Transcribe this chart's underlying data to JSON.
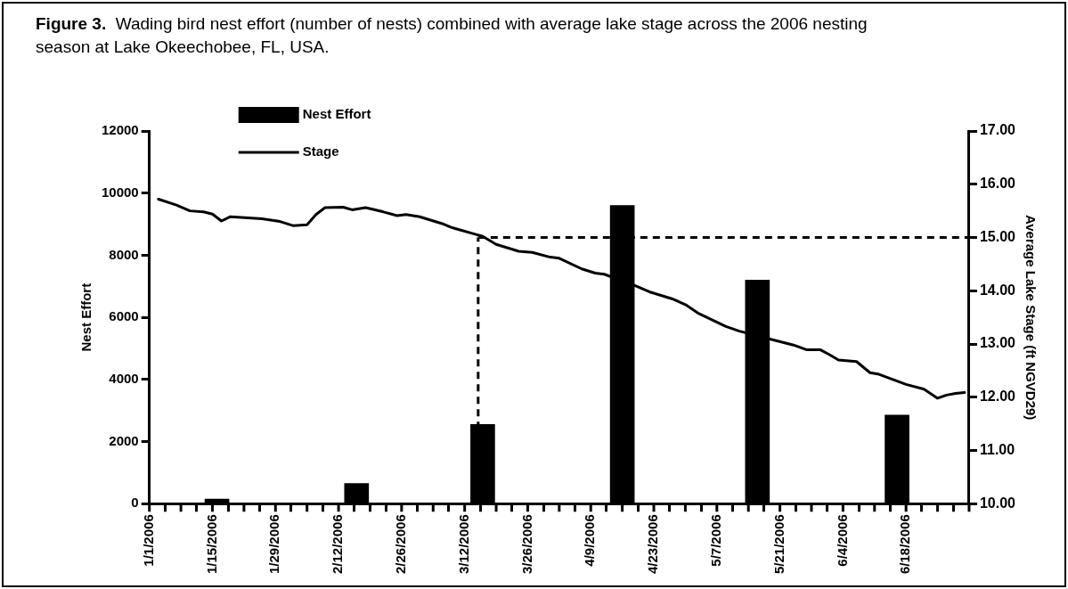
{
  "chart_data": {
    "type": "bar",
    "title": "Figure 3.",
    "subtitle": "Wading bird nest effort (number of nests) combined with average lake stage across the 2006 nesting season at Lake Okeechobee, FL, USA.",
    "ylabel": "Nest Effort",
    "y2label": "Average Lake Stage (ft NGVD29)",
    "series": [
      {
        "name": "Nest Effort",
        "color": "#000000",
        "x": [
          "2006-01-16",
          "2006-02-16",
          "2006-03-16",
          "2006-04-16",
          "2006-05-16",
          "2006-06-16"
        ],
        "values": [
          150,
          650,
          2550,
          9600,
          7200,
          2850
        ]
      },
      {
        "name": "Stage",
        "type": "line",
        "axis": "y2",
        "color": "#000000",
        "x": [
          "2006-01-03",
          "2006-01-07",
          "2006-01-10",
          "2006-01-13",
          "2006-01-15",
          "2006-01-17",
          "2006-01-19",
          "2006-01-26",
          "2006-01-30",
          "2006-02-02",
          "2006-02-05",
          "2006-02-07",
          "2006-02-09",
          "2006-02-13",
          "2006-02-15",
          "2006-02-18",
          "2006-02-22",
          "2006-02-25",
          "2006-02-27",
          "2006-03-02",
          "2006-03-07",
          "2006-03-09",
          "2006-03-14",
          "2006-03-16",
          "2006-03-19",
          "2006-03-24",
          "2006-03-27",
          "2006-03-31",
          "2006-04-02",
          "2006-04-07",
          "2006-04-10",
          "2006-04-12",
          "2006-04-19",
          "2006-04-22",
          "2006-04-27",
          "2006-04-30",
          "2006-05-03",
          "2006-05-09",
          "2006-05-12",
          "2006-05-18",
          "2006-05-24",
          "2006-05-27",
          "2006-05-30",
          "2006-06-01",
          "2006-06-03",
          "2006-06-07",
          "2006-06-10",
          "2006-06-12",
          "2006-06-18",
          "2006-06-22",
          "2006-06-25",
          "2006-06-27",
          "2006-06-29",
          "2006-07-01"
        ],
        "values": [
          15.72,
          15.61,
          15.5,
          15.48,
          15.44,
          15.31,
          15.39,
          15.35,
          15.3,
          15.22,
          15.24,
          15.43,
          15.56,
          15.57,
          15.52,
          15.56,
          15.48,
          15.41,
          15.43,
          15.39,
          15.26,
          15.19,
          15.07,
          15.02,
          14.87,
          14.74,
          14.72,
          14.63,
          14.61,
          14.41,
          14.33,
          14.31,
          14.09,
          13.98,
          13.85,
          13.74,
          13.57,
          13.33,
          13.24,
          13.11,
          12.98,
          12.89,
          12.89,
          12.8,
          12.7,
          12.67,
          12.46,
          12.43,
          12.24,
          12.15,
          11.98,
          12.04,
          12.07,
          12.09
        ]
      }
    ],
    "xlim": [
      "2006-01-01",
      "2006-07-02"
    ],
    "xticks": [
      {
        "value": "2006-01-01",
        "label": "1/1/2006"
      },
      {
        "value": "2006-01-08",
        "label": null
      },
      {
        "value": "2006-01-15",
        "label": "1/15/2006"
      },
      {
        "value": "2006-01-22",
        "label": null
      },
      {
        "value": "2006-01-29",
        "label": "1/29/2006"
      },
      {
        "value": "2006-02-05",
        "label": null
      },
      {
        "value": "2006-02-12",
        "label": "2/12/2006"
      },
      {
        "value": "2006-02-19",
        "label": null
      },
      {
        "value": "2006-02-26",
        "label": "2/26/2006"
      },
      {
        "value": "2006-03-05",
        "label": null
      },
      {
        "value": "2006-03-12",
        "label": "3/12/2006"
      },
      {
        "value": "2006-03-19",
        "label": null
      },
      {
        "value": "2006-03-26",
        "label": "3/26/2006"
      },
      {
        "value": "2006-04-02",
        "label": null
      },
      {
        "value": "2006-04-09",
        "label": "4/9/2006"
      },
      {
        "value": "2006-04-16",
        "label": null
      },
      {
        "value": "2006-04-23",
        "label": "4/23/2006"
      },
      {
        "value": "2006-04-30",
        "label": null
      },
      {
        "value": "2006-05-07",
        "label": "5/7/2006"
      },
      {
        "value": "2006-05-14",
        "label": null
      },
      {
        "value": "2006-05-21",
        "label": "5/21/2006"
      },
      {
        "value": "2006-05-28",
        "label": null
      },
      {
        "value": "2006-06-04",
        "label": "6/4/2006"
      },
      {
        "value": "2006-06-11",
        "label": null
      },
      {
        "value": "2006-06-18",
        "label": "6/18/2006"
      },
      {
        "value": "2006-06-25",
        "label": null
      },
      {
        "value": "2006-07-02",
        "label": null
      }
    ],
    "ylim": [
      0,
      12000
    ],
    "yticks": [
      0,
      2000,
      4000,
      6000,
      8000,
      10000,
      12000
    ],
    "y2lim": [
      10,
      17
    ],
    "y2ticks": [
      {
        "value": 10,
        "label": "10.00"
      },
      {
        "value": 11,
        "label": "11.00"
      },
      {
        "value": 12,
        "label": "12.00"
      },
      {
        "value": 13,
        "label": "13.00"
      },
      {
        "value": 14,
        "label": "14.00"
      },
      {
        "value": 15,
        "label": "15.00"
      },
      {
        "value": 16,
        "label": "16.00"
      },
      {
        "value": 17,
        "label": "17.00"
      }
    ],
    "ref_lines": [
      {
        "axis": "y2",
        "value": 15,
        "color": "#000000",
        "line_style": "dashed"
      },
      {
        "axis": "x",
        "value": "2006-03-15",
        "color": "#000000",
        "line_style": "dashed"
      }
    ],
    "legend": "top left",
    "marker": "none",
    "line_style": "solid"
  }
}
